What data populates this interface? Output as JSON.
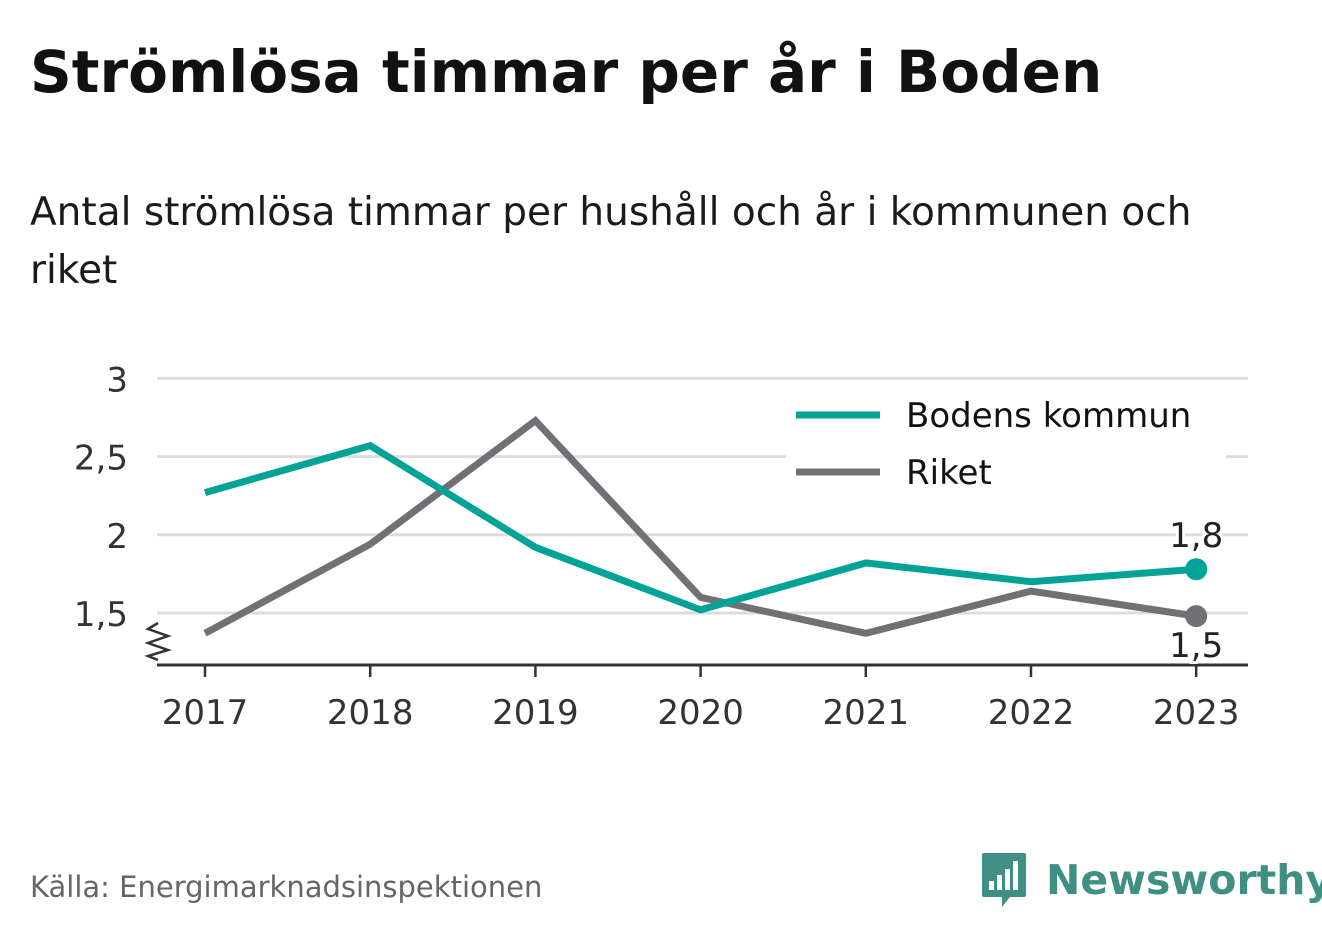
{
  "title": "Strömlösa timmar per år i Boden",
  "subtitle": "Antal strömlösa timmar per hushåll och år i kommunen och riket",
  "source": "Källa: Energimarknadsinspektionen",
  "brand": "Newsworthy",
  "colors": {
    "bodens": "#00A396",
    "riket": "#717074",
    "grid": "#dddddd",
    "axis": "#333333"
  },
  "chart_data": {
    "type": "line",
    "title": "Strömlösa timmar per år i Boden",
    "subtitle": "Antal strömlösa timmar per hushåll och år i kommunen och riket",
    "categories": [
      "2017",
      "2018",
      "2019",
      "2020",
      "2021",
      "2022",
      "2023"
    ],
    "series": [
      {
        "name": "Bodens kommun",
        "values": [
          2.27,
          2.57,
          1.92,
          1.52,
          1.82,
          1.7,
          1.78
        ],
        "end_label": "1,8"
      },
      {
        "name": "Riket",
        "values": [
          1.37,
          1.94,
          2.73,
          1.6,
          1.37,
          1.64,
          1.48
        ],
        "end_label": "1,5"
      }
    ],
    "yticks": [
      1.5,
      2,
      2.5,
      3
    ],
    "ytick_labels": [
      "1,5",
      "2",
      "2,5",
      "3"
    ],
    "ylim": [
      1.17,
      3
    ],
    "axis_break": true,
    "grid": true,
    "legend": "top-right",
    "xlabel": "",
    "ylabel": ""
  }
}
